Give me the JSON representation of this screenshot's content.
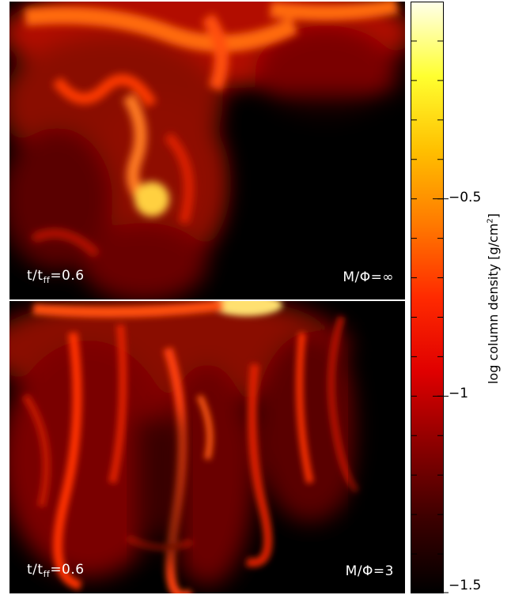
{
  "panels": [
    {
      "time_label": {
        "base": "t/t",
        "sub": "ff",
        "rest": "=0.6"
      },
      "mu_label": "M/Φ=∞"
    },
    {
      "time_label": {
        "base": "t/t",
        "sub": "ff",
        "rest": "=0.6"
      },
      "mu_label": "M/Φ=3"
    }
  ],
  "colorbar": {
    "title": "log column density [g/cm",
    "title_sup": "2",
    "title_close": "]",
    "tick_labels": [
      "−0.5",
      "−1",
      "−1.5"
    ],
    "tick_values": [
      -0.5,
      -1,
      -1.5
    ],
    "range": [
      -1.5,
      0.0
    ],
    "colors": [
      "#000000",
      "#3c0000",
      "#8c0000",
      "#e00000",
      "#ff2a00",
      "#ff7a00",
      "#ffc000",
      "#ffff30",
      "#ffffe8"
    ]
  }
}
